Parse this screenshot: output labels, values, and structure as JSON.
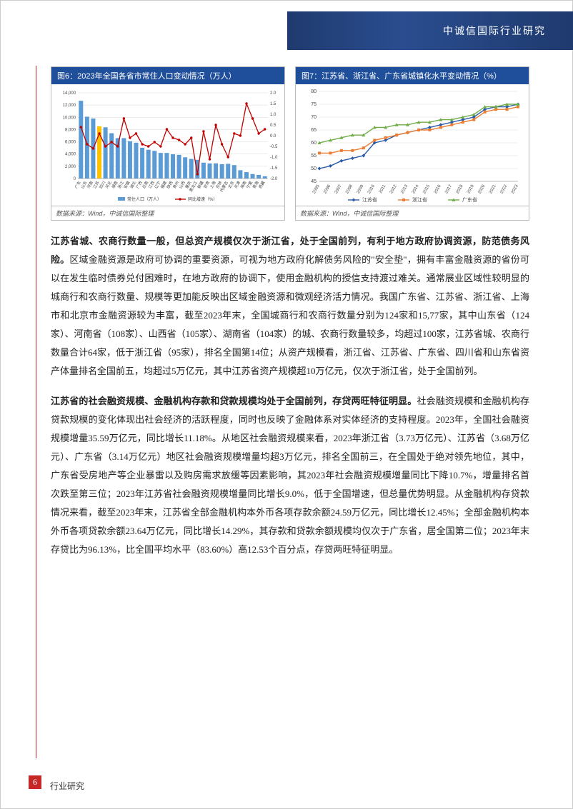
{
  "header": {
    "brand": "中诚信国际行业研究"
  },
  "footer": {
    "page_num": "6",
    "label": "行业研究"
  },
  "chart6": {
    "title": "图6：2023年全国各省市常住人口变动情况（万人）",
    "source": "数据来源：Wind，中诚信国际整理",
    "type": "bar+line",
    "bar_color": "#5b9bd5",
    "highlight_color": "#ffc000",
    "line_color": "#c00000",
    "grid_color": "#d9d9d9",
    "background_color": "#ffffff",
    "label_fontsize": 6,
    "y_left": {
      "min": 0,
      "max": 14000,
      "ticks": [
        0,
        2000,
        4000,
        6000,
        8000,
        10000,
        12000,
        14000
      ]
    },
    "y_right": {
      "min": -2.0,
      "max": 2.0,
      "ticks": [
        -2.0,
        -1.5,
        -1.0,
        -0.5,
        0.0,
        0.5,
        1.0,
        1.5,
        2.0
      ]
    },
    "legend": {
      "bar": "常住人口（万人）",
      "line": "同比增速（%）"
    },
    "categories": [
      "广东",
      "山东",
      "河南",
      "江苏",
      "四川",
      "河北",
      "湖南",
      "浙江",
      "安徽",
      "湖北",
      "广西",
      "云南",
      "江西",
      "辽宁",
      "福建",
      "陕西",
      "贵州",
      "山西",
      "重庆",
      "黑龙江",
      "新疆",
      "甘肃",
      "上海",
      "吉林",
      "内蒙古",
      "北京",
      "天津",
      "海南",
      "宁夏",
      "青海",
      "西藏"
    ],
    "highlight_index": 3,
    "bars": [
      12700,
      10100,
      9800,
      8530,
      8370,
      7400,
      6600,
      6600,
      6100,
      5850,
      5030,
      4700,
      4520,
      4180,
      4180,
      3960,
      3870,
      3470,
      3200,
      3060,
      2590,
      2470,
      2480,
      2340,
      2400,
      2190,
      1360,
      1040,
      730,
      590,
      370
    ],
    "line": [
      0.4,
      -0.4,
      -0.6,
      0.1,
      -0.5,
      -0.3,
      -0.5,
      0.8,
      -0.1,
      0.1,
      -0.4,
      -0.5,
      -0.3,
      -0.5,
      0.3,
      -0.1,
      -0.2,
      -0.4,
      -0.1,
      -1.8,
      0.2,
      -1.1,
      0.5,
      -0.4,
      -1.0,
      0.1,
      0.0,
      1.5,
      0.8,
      0.1,
      0.3
    ]
  },
  "chart7": {
    "title": "图7：江苏省、浙江省、广东省城镇化水平变动情况（%）",
    "source": "数据来源：Wind，中诚信国际整理",
    "type": "line",
    "grid_color": "#d9d9d9",
    "background_color": "#ffffff",
    "label_fontsize": 7,
    "y": {
      "min": 45,
      "max": 80,
      "ticks": [
        45,
        50,
        55,
        60,
        65,
        70,
        75,
        80
      ]
    },
    "x_categories": [
      "2005",
      "2006",
      "2007",
      "2008",
      "2009",
      "2010",
      "2011",
      "2012",
      "2013",
      "2014",
      "2015",
      "2016",
      "2017",
      "2018",
      "2019",
      "2020",
      "2021",
      "2022",
      "2023"
    ],
    "legend": {
      "jiangsu": "江苏省",
      "zhejiang": "浙江省",
      "guangdong": "广东省"
    },
    "series": {
      "jiangsu": {
        "color": "#2a5caa",
        "marker": "diamond",
        "values": [
          50,
          51,
          53,
          54,
          55,
          60,
          61,
          63,
          64,
          65,
          66,
          67,
          68,
          69,
          70,
          73,
          74,
          74,
          75
        ]
      },
      "zhejiang": {
        "color": "#ed7d31",
        "marker": "square",
        "values": [
          56,
          56,
          57,
          57,
          58,
          61,
          62,
          63,
          64,
          65,
          65,
          66,
          67,
          68,
          69,
          72,
          73,
          73,
          74
        ]
      },
      "guangdong": {
        "color": "#70ad47",
        "marker": "triangle",
        "values": [
          60,
          61,
          62,
          63,
          63,
          66,
          66,
          67,
          67,
          68,
          68,
          69,
          69,
          70,
          71,
          74,
          74,
          75,
          75
        ]
      }
    }
  },
  "para1": {
    "lead": "江苏省城、农商行数量一般，但总资产规模仅次于浙江省，处于全国前列，有利于地方政府协调资源，防范债务风险。",
    "body": "区域金融资源是政府可协调的重要资源，可视为地方政府化解债务风险的\"安全垫\"，拥有丰富金融资源的省份可以在发生临时债券兑付困难时，在地方政府的协调下，使用金融机构的授信支持渡过难关。通常展业区域性较明显的城商行和农商行数量、规模等更加能反映出区域金融资源和微观经济活力情况。我国广东省、江苏省、浙江省、上海市和北京市金融资源较为丰富，截至2023年末，全国城商行和农商行数量分别为124家和15,77家，其中山东省（124家）、河南省（108家）、山西省（105家）、湖南省（104家）的城、农商行数量较多，均超过100家，江苏省城、农商行数量合计64家，低于浙江省（95家），排名全国第14位；从资产规模看，浙江省、江苏省、广东省、四川省和山东省资产体量排名全国前五，均超过5万亿元，其中江苏省资产规模超10万亿元，仅次于浙江省，处于全国前列。"
  },
  "para2": {
    "lead": "江苏省的社会融资规模、金融机构存款和贷款规模均处于全国前列，存贷两旺特征明显。",
    "body": "社会融资规模和金融机构存贷款规模的变化体现出社会经济的活跃程度，同时也反映了金融体系对实体经济的支持程度。2023年，全国社会融资规模增量35.59万亿元，同比增长11.18%。从地区社会融资规模来看，2023年浙江省（3.73万亿元）、江苏省（3.68万亿元）、广东省（3.14万亿元）地区社会融资规模增量均超3万亿元，排名全国前三，在全国处于绝对领先地位，其中，广东省受房地产等企业暴雷以及购房需求放缓等因素影响，其2023年社会融资规模增量同比下降10.7%，增量排名首次跌至第三位；2023年江苏省社会融资规模增量同比增长9.0%，低于全国增速，但总量优势明显。从金融机构存贷款情况来看，截至2023年末，江苏省全部金融机构本外币各项存款余额24.59万亿元，同比增长12.45%；全部金融机构本外币各项贷款余额23.64万亿元，同比增长14.29%，其存款和贷款余额规模均仅次于广东省，居全国第二位；2023年末存贷比为96.13%，比全国平均水平（83.60%）高12.53个百分点，存贷两旺特征明显。"
  }
}
